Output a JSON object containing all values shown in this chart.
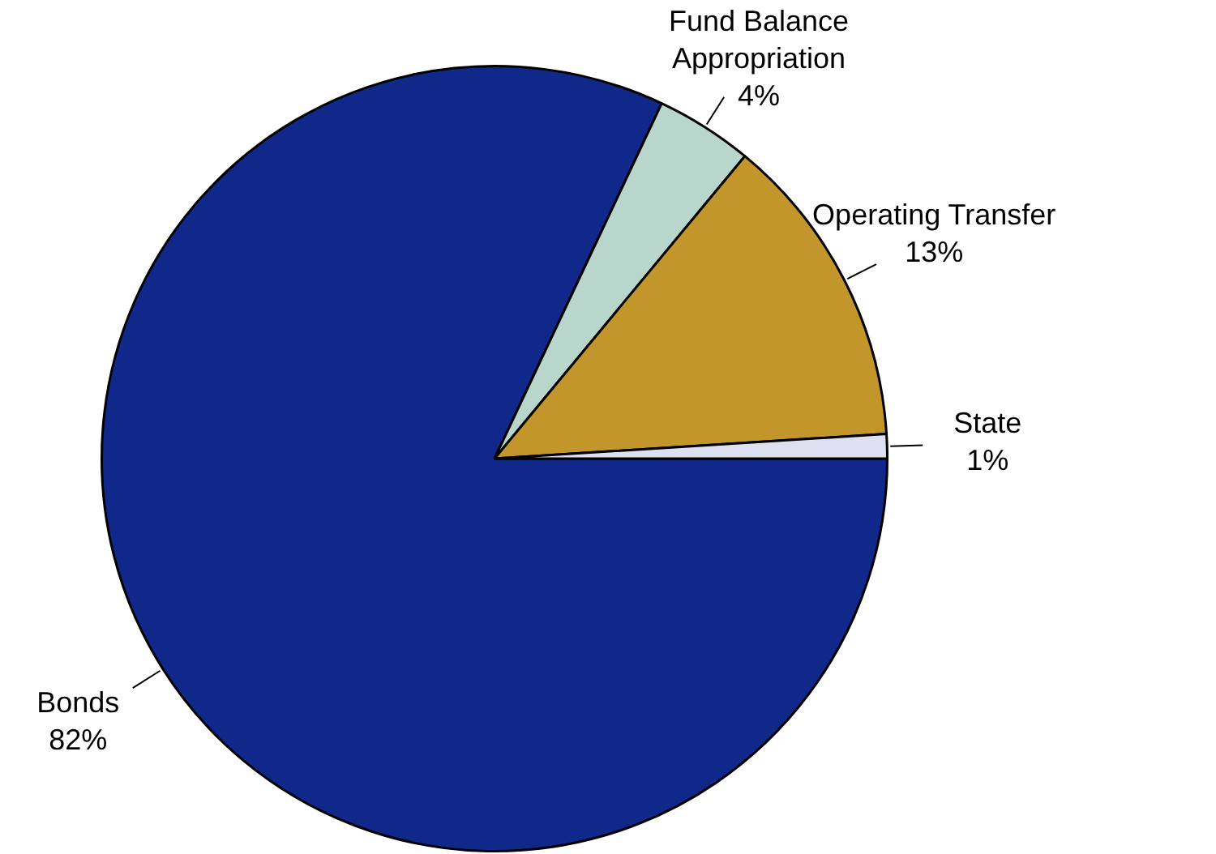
{
  "chart_data": {
    "type": "pie",
    "categories": [
      "Bonds",
      "Fund Balance Appropriation",
      "Operating Transfer",
      "State"
    ],
    "values": [
      82,
      4,
      13,
      1
    ],
    "colors": [
      "#10288a",
      "#b8d6cc",
      "#c2962a",
      "#dde0f0"
    ],
    "value_labels": [
      "82%",
      "4%",
      "13%",
      "1%"
    ],
    "legend": false
  }
}
